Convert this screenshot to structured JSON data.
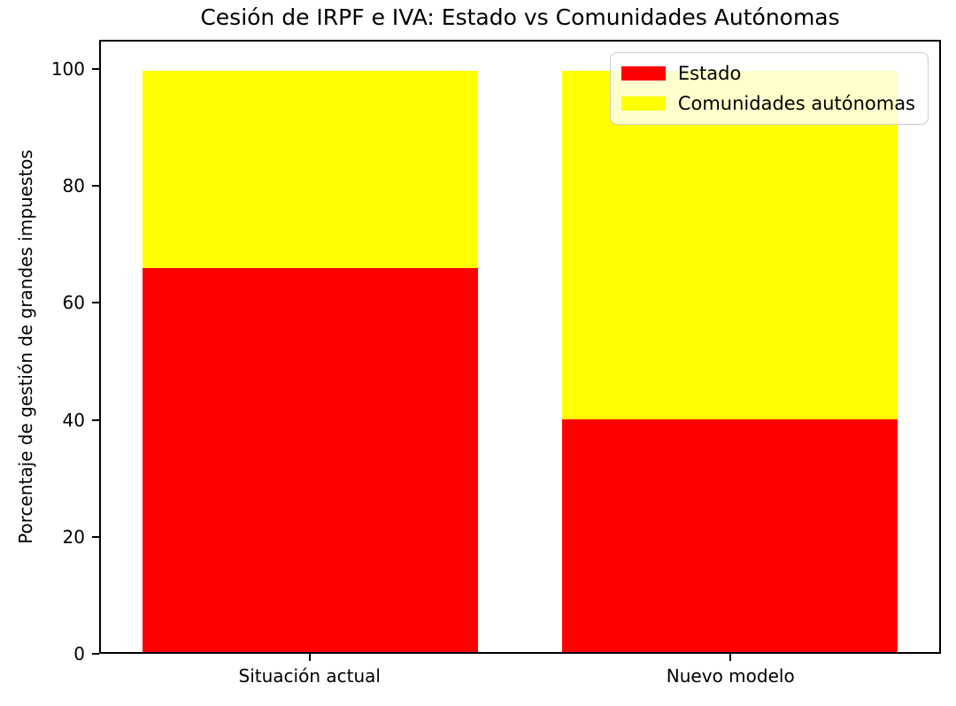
{
  "title": "Cesión de IRPF e IVA: Estado vs Comunidades Autónomas",
  "ylabel": "Porcentaje de gestión de grandes impuestos",
  "chart_data": {
    "type": "bar",
    "stacked": true,
    "title": "Cesión de IRPF e IVA: Estado vs Comunidades Autónomas",
    "xlabel": "",
    "ylabel": "Porcentaje de gestión de grandes impuestos",
    "categories": [
      "Situación actual",
      "Nuevo modelo"
    ],
    "series": [
      {
        "name": "Estado",
        "color": "#ff0000",
        "values": [
          66,
          40
        ]
      },
      {
        "name": "Comunidades autónomas",
        "color": "#ffff00",
        "values": [
          34,
          60
        ]
      }
    ],
    "totals": [
      100,
      100
    ],
    "ylim": [
      0,
      105
    ],
    "yticks": [
      0,
      20,
      40,
      60,
      80,
      100
    ],
    "grid": false,
    "legend_position": "upper right",
    "bar_width_fraction": 0.4,
    "bar_center_fractions": [
      0.25,
      0.75
    ]
  }
}
